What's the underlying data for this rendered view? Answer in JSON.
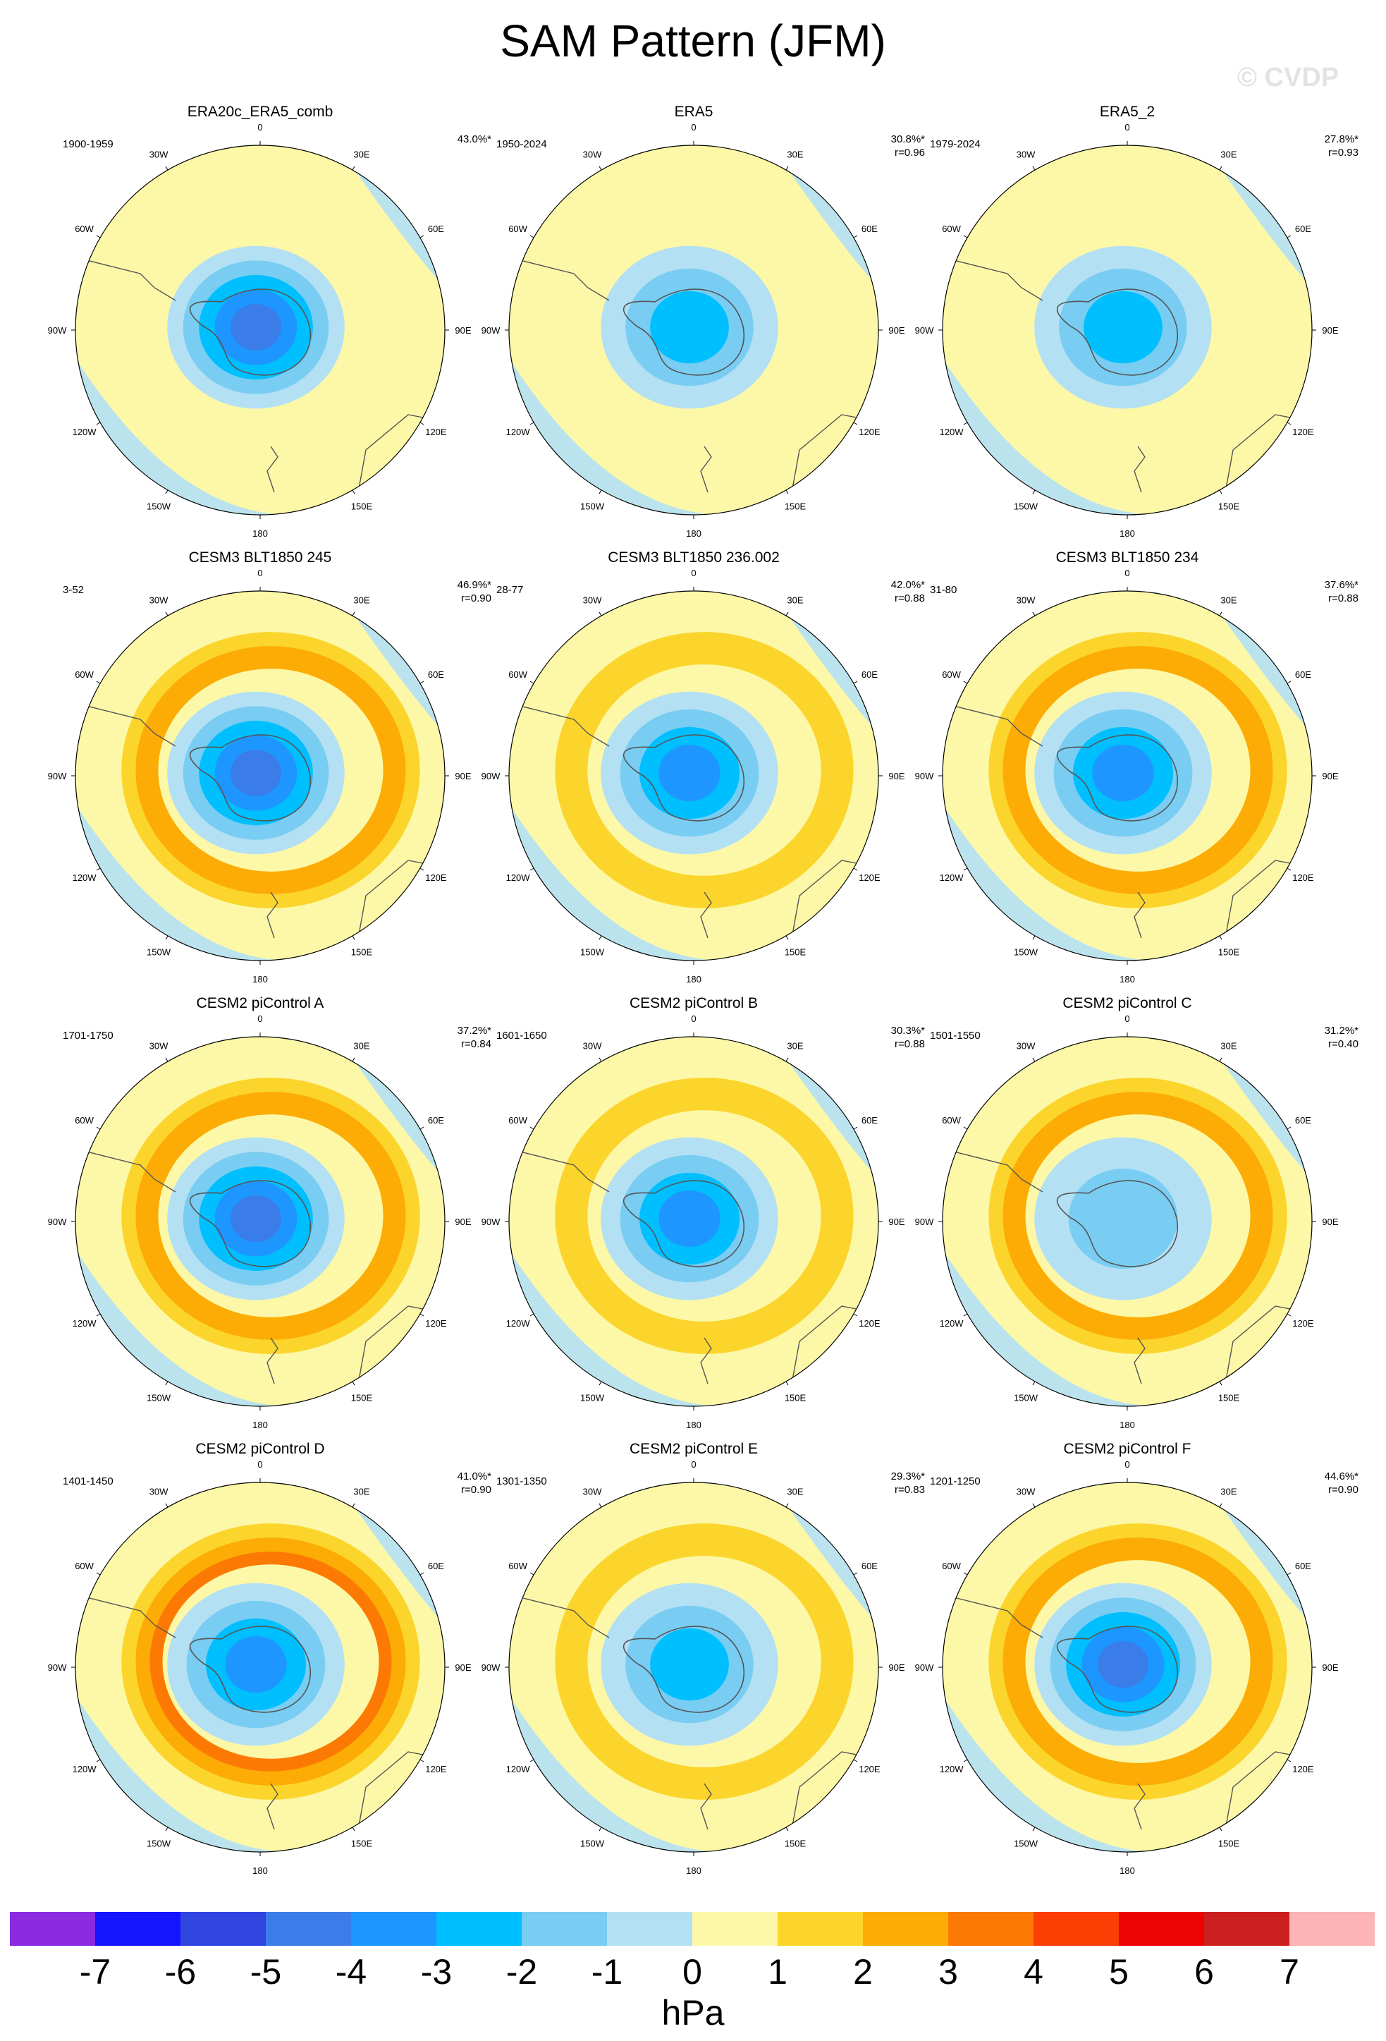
{
  "title": "SAM Pattern (JFM)",
  "watermark": "© CVDP",
  "units": "hPa",
  "chart_data": {
    "type": "polar-contour",
    "title": "SAM Pattern (JFM)",
    "projection": "Southern Hemisphere polar stereographic",
    "units": "hPa",
    "levels": [
      -7,
      -6,
      -5,
      -4,
      -3,
      -2,
      -1,
      0,
      1,
      2,
      3,
      4,
      5,
      6,
      7
    ],
    "level_colors": [
      "#8a2be2",
      "#1414ff",
      "#3044e0",
      "#3a7ce8",
      "#1e96ff",
      "#00bfff",
      "#79cdf2",
      "#b4e0f4",
      "#fcf8a8",
      "#fcd52c",
      "#fcac04",
      "#fc7a04",
      "#fc3d04",
      "#ec0404",
      "#cc2020",
      "#fcb4b4"
    ],
    "longitude_labels": [
      "0",
      "30E",
      "60E",
      "90E",
      "120E",
      "150E",
      "180",
      "150W",
      "120W",
      "90W",
      "60W",
      "30W"
    ],
    "panels": [
      {
        "name": "ERA20c_ERA5_comb",
        "period": "1900-1959",
        "pct_var": "43.0%*",
        "r": "",
        "core_min": -5,
        "ring_max": 0
      },
      {
        "name": "ERA5",
        "period": "1950-2024",
        "pct_var": "30.8%*",
        "r": "r=0.96",
        "core_min": -3,
        "ring_max": 0
      },
      {
        "name": "ERA5_2",
        "period": "1979-2024",
        "pct_var": "27.8%*",
        "r": "r=0.93",
        "core_min": -3,
        "ring_max": 1
      },
      {
        "name": "CESM3 BLT1850 245",
        "period": "3-52",
        "pct_var": "46.9%*",
        "r": "r=0.90",
        "core_min": -5,
        "ring_max": 3
      },
      {
        "name": "CESM3 BLT1850 236.002",
        "period": "28-77",
        "pct_var": "42.0%*",
        "r": "r=0.88",
        "core_min": -4,
        "ring_max": 2
      },
      {
        "name": "CESM3 BLT1850 234",
        "period": "31-80",
        "pct_var": "37.6%*",
        "r": "r=0.88",
        "core_min": -4,
        "ring_max": 3
      },
      {
        "name": "CESM2 piControl A",
        "period": "1701-1750",
        "pct_var": "37.2%*",
        "r": "r=0.84",
        "core_min": -5,
        "ring_max": 3
      },
      {
        "name": "CESM2 piControl B",
        "period": "1601-1650",
        "pct_var": "30.3%*",
        "r": "r=0.88",
        "core_min": -4,
        "ring_max": 2
      },
      {
        "name": "CESM2 piControl C",
        "period": "1501-1550",
        "pct_var": "31.2%*",
        "r": "r=0.40",
        "core_min": -2,
        "ring_max": 3
      },
      {
        "name": "CESM2 piControl D",
        "period": "1401-1450",
        "pct_var": "41.0%*",
        "r": "r=0.90",
        "core_min": -4,
        "ring_max": 4
      },
      {
        "name": "CESM2 piControl E",
        "period": "1301-1350",
        "pct_var": "29.3%*",
        "r": "r=0.83",
        "core_min": -3,
        "ring_max": 2
      },
      {
        "name": "CESM2 piControl F",
        "period": "1201-1250",
        "pct_var": "44.6%*",
        "r": "r=0.90",
        "core_min": -5,
        "ring_max": 3
      }
    ]
  }
}
